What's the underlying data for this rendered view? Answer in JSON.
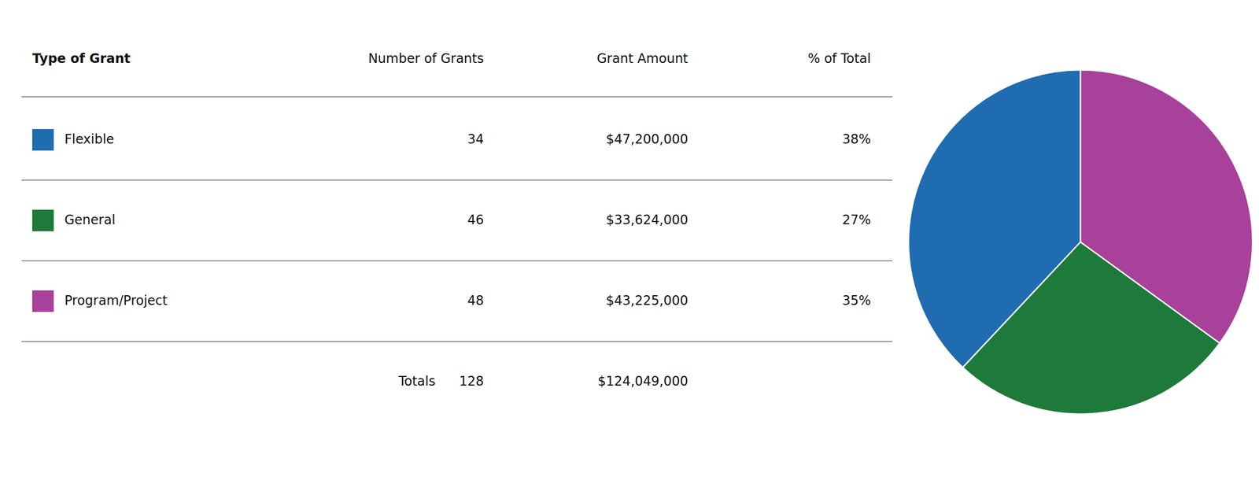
{
  "chart_data": [
    {
      "type": "table",
      "xlabel": "Type of Grant",
      "categories": [
        "Flexible",
        "General",
        "Program/Project"
      ],
      "colors": [
        "#1F6CB0",
        "#1E7A3A",
        "#A8419A"
      ],
      "series": [
        {
          "name": "Number of Grants",
          "values": [
            34,
            46,
            48
          ],
          "total": 128
        },
        {
          "name": "Grant Amount",
          "values": [
            47200000,
            33624000,
            43225000
          ],
          "value_labels": [
            "$47,200,000",
            "$33,624,000",
            "$43,225,000"
          ],
          "total": 124049000,
          "total_label": "$124,049,000"
        },
        {
          "name": "% of Total",
          "values": [
            38,
            27,
            35
          ],
          "value_labels": [
            "38%",
            "27%",
            "35%"
          ]
        }
      ],
      "annotations": [
        {
          "text": "Totals"
        }
      ]
    },
    {
      "type": "pie",
      "values": [
        38,
        27,
        35
      ],
      "colors": [
        "#1F6CB0",
        "#1E7A3A",
        "#A8419A"
      ]
    }
  ]
}
